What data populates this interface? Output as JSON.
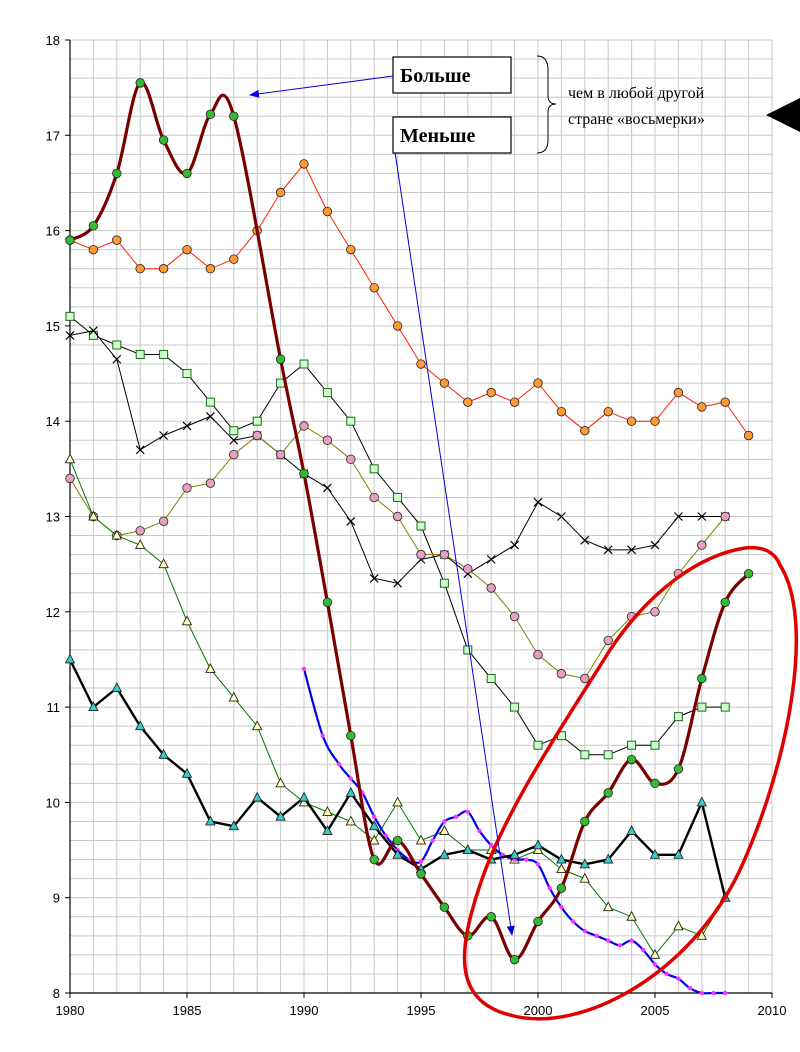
{
  "annotations": {
    "more": "Больше",
    "less": "Меньше",
    "note_line1": "чем в любой другой",
    "note_line2": "стране «восьмерки»"
  },
  "colors": {
    "highlight_ellipse": "#e00000",
    "arrow": "#0000dd",
    "grid": "#c8c8c8"
  },
  "chart_data": {
    "type": "line",
    "title": "",
    "xlabel": "",
    "ylabel": "",
    "xlim": [
      1980,
      2010
    ],
    "ylim": [
      8,
      18
    ],
    "x_ticks": [
      1980,
      1985,
      1990,
      1995,
      2000,
      2005,
      2010
    ],
    "y_ticks": [
      8,
      9,
      10,
      11,
      12,
      13,
      14,
      15,
      16,
      17,
      18
    ],
    "grid": "both",
    "legend": "none",
    "series": [
      {
        "color": "#7a0000",
        "width": 3.2,
        "marker": "circle",
        "marker_fill": "#33bb33",
        "smooth": true,
        "x": [
          1980,
          1981,
          1982,
          1983,
          1984,
          1985,
          1986,
          1987,
          1989,
          1990,
          1991,
          1992,
          1993,
          1994,
          1995,
          1996,
          1997,
          1998,
          1999,
          2000,
          2001,
          2002,
          2003,
          2004,
          2005,
          2006,
          2007,
          2008,
          2009
        ],
        "y": [
          15.9,
          16.05,
          16.6,
          17.55,
          16.95,
          16.6,
          17.22,
          17.2,
          14.65,
          13.45,
          12.1,
          10.7,
          9.4,
          9.6,
          9.25,
          8.9,
          8.6,
          8.8,
          8.35,
          8.75,
          9.1,
          9.8,
          10.1,
          10.45,
          10.2,
          10.35,
          11.3,
          12.1,
          12.4
        ]
      },
      {
        "color": "#ff2200",
        "width": 1,
        "marker": "circle",
        "marker_fill": "#ff9933",
        "smooth": false,
        "x": [
          1980,
          1981,
          1982,
          1983,
          1984,
          1985,
          1986,
          1987,
          1988,
          1989,
          1990,
          1991,
          1992,
          1993,
          1994,
          1995,
          1996,
          1997,
          1998,
          1999,
          2000,
          2001,
          2002,
          2003,
          2004,
          2005,
          2006,
          2007,
          2008,
          2009
        ],
        "y": [
          15.9,
          15.8,
          15.9,
          15.6,
          15.6,
          15.8,
          15.6,
          15.7,
          16.0,
          16.4,
          16.7,
          16.2,
          15.8,
          15.4,
          15.0,
          14.6,
          14.4,
          14.2,
          14.3,
          14.2,
          14.4,
          14.1,
          13.9,
          14.1,
          14.0,
          14.0,
          14.3,
          14.15,
          14.2,
          13.85
        ]
      },
      {
        "color": "#000000",
        "width": 1,
        "marker": "square",
        "marker_fill": "#ccffcc",
        "smooth": false,
        "x": [
          1980,
          1981,
          1982,
          1983,
          1984,
          1985,
          1986,
          1987,
          1988,
          1989,
          1990,
          1991,
          1992,
          1993,
          1994,
          1995,
          1996,
          1997,
          1998,
          1999,
          2000,
          2001,
          2002,
          2003,
          2004,
          2005,
          2006,
          2007,
          2008
        ],
        "y": [
          15.1,
          14.9,
          14.8,
          14.7,
          14.7,
          14.5,
          14.2,
          13.9,
          14.0,
          14.4,
          14.6,
          14.3,
          14.0,
          13.5,
          13.2,
          12.9,
          12.3,
          11.6,
          11.3,
          11.0,
          10.6,
          10.7,
          10.5,
          10.5,
          10.6,
          10.6,
          10.9,
          11.0,
          11.0
        ]
      },
      {
        "color": "#000000",
        "width": 1,
        "marker": "cross",
        "marker_fill": "#000000",
        "smooth": false,
        "x": [
          1980,
          1981,
          1982,
          1983,
          1984,
          1985,
          1986,
          1987,
          1988,
          1989,
          1990,
          1991,
          1992,
          1993,
          1994,
          1995,
          1996,
          1997,
          1998,
          1999,
          2000,
          2001,
          2002,
          2003,
          2004,
          2005,
          2006,
          2007,
          2008
        ],
        "y": [
          14.9,
          14.95,
          14.65,
          13.7,
          13.85,
          13.95,
          14.05,
          13.8,
          13.85,
          13.65,
          13.45,
          13.3,
          12.95,
          12.35,
          12.3,
          12.55,
          12.6,
          12.4,
          12.55,
          12.7,
          13.15,
          13.0,
          12.75,
          12.65,
          12.65,
          12.7,
          13.0,
          13.0,
          13.0
        ]
      },
      {
        "color": "#808000",
        "width": 1,
        "marker": "circle",
        "marker_fill": "#e8a0c0",
        "smooth": false,
        "x": [
          1980,
          1981,
          1982,
          1983,
          1984,
          1985,
          1986,
          1987,
          1988,
          1989,
          1990,
          1991,
          1992,
          1993,
          1994,
          1995,
          1996,
          1997,
          1998,
          1999,
          2000,
          2001,
          2002,
          2003,
          2004,
          2005,
          2006,
          2007,
          2008
        ],
        "y": [
          13.4,
          13.0,
          12.8,
          12.85,
          12.95,
          13.3,
          13.35,
          13.65,
          13.85,
          13.65,
          13.95,
          13.8,
          13.6,
          13.2,
          13.0,
          12.6,
          12.6,
          12.45,
          12.25,
          11.95,
          11.55,
          11.35,
          11.3,
          11.7,
          11.95,
          12.0,
          12.4,
          12.7,
          13.0
        ]
      },
      {
        "color": "#007700",
        "width": 1,
        "marker": "triangle",
        "marker_fill": "#ffffbb",
        "smooth": false,
        "x": [
          1980,
          1981,
          1982,
          1983,
          1984,
          1985,
          1986,
          1987,
          1988,
          1989,
          1990,
          1991,
          1992,
          1993,
          1994,
          1995,
          1996,
          1997,
          1998,
          1999,
          2000,
          2001,
          2002,
          2003,
          2004,
          2005,
          2006,
          2007,
          2008
        ],
        "y": [
          13.6,
          13.0,
          12.8,
          12.7,
          12.5,
          11.9,
          11.4,
          11.1,
          10.8,
          10.2,
          10.0,
          9.9,
          9.8,
          9.6,
          10.0,
          9.6,
          9.7,
          9.5,
          9.5,
          9.4,
          9.5,
          9.3,
          9.2,
          8.9,
          8.8,
          8.4,
          8.7,
          8.6,
          9.0
        ]
      },
      {
        "color": "#000000",
        "width": 2.4,
        "marker": "triangle",
        "marker_fill": "#33cccc",
        "smooth": false,
        "x": [
          1980,
          1981,
          1982,
          1983,
          1984,
          1985,
          1986,
          1987,
          1988,
          1989,
          1990,
          1991,
          1992,
          1993,
          1994,
          1995,
          1996,
          1997,
          1998,
          1999,
          2000,
          2001,
          2002,
          2003,
          2004,
          2005,
          2006,
          2007,
          2008
        ],
        "y": [
          11.5,
          11.0,
          11.2,
          10.8,
          10.5,
          10.3,
          9.8,
          9.75,
          10.05,
          9.85,
          10.05,
          9.7,
          10.1,
          9.75,
          9.45,
          9.3,
          9.45,
          9.5,
          9.4,
          9.45,
          9.55,
          9.4,
          9.35,
          9.4,
          9.7,
          9.45,
          9.45,
          10.0,
          9.0
        ]
      },
      {
        "color": "#0000ee",
        "width": 2.2,
        "marker": "dot",
        "marker_fill": "#ff33ff",
        "smooth": true,
        "x": [
          1990,
          1990.8,
          1991.5,
          1992,
          1992.5,
          1993,
          1993.5,
          1994,
          1994.5,
          1995,
          1995.5,
          1996,
          1996.5,
          1997,
          1997.5,
          1998,
          1998.5,
          1999,
          1999.5,
          2000,
          2000.5,
          2001,
          2001.5,
          2002,
          2002.5,
          2003,
          2003.5,
          2004,
          2004.5,
          2005,
          2005.5,
          2006,
          2006.5,
          2007,
          2007.5,
          2008
        ],
        "y": [
          11.4,
          10.7,
          10.4,
          10.25,
          10.1,
          9.85,
          9.65,
          9.5,
          9.4,
          9.38,
          9.6,
          9.8,
          9.85,
          9.9,
          9.7,
          9.55,
          9.45,
          9.4,
          9.4,
          9.35,
          9.1,
          8.9,
          8.75,
          8.65,
          8.6,
          8.55,
          8.5,
          8.55,
          8.45,
          8.3,
          8.2,
          8.15,
          8.05,
          8.0,
          8.0,
          8.0
        ]
      }
    ]
  }
}
